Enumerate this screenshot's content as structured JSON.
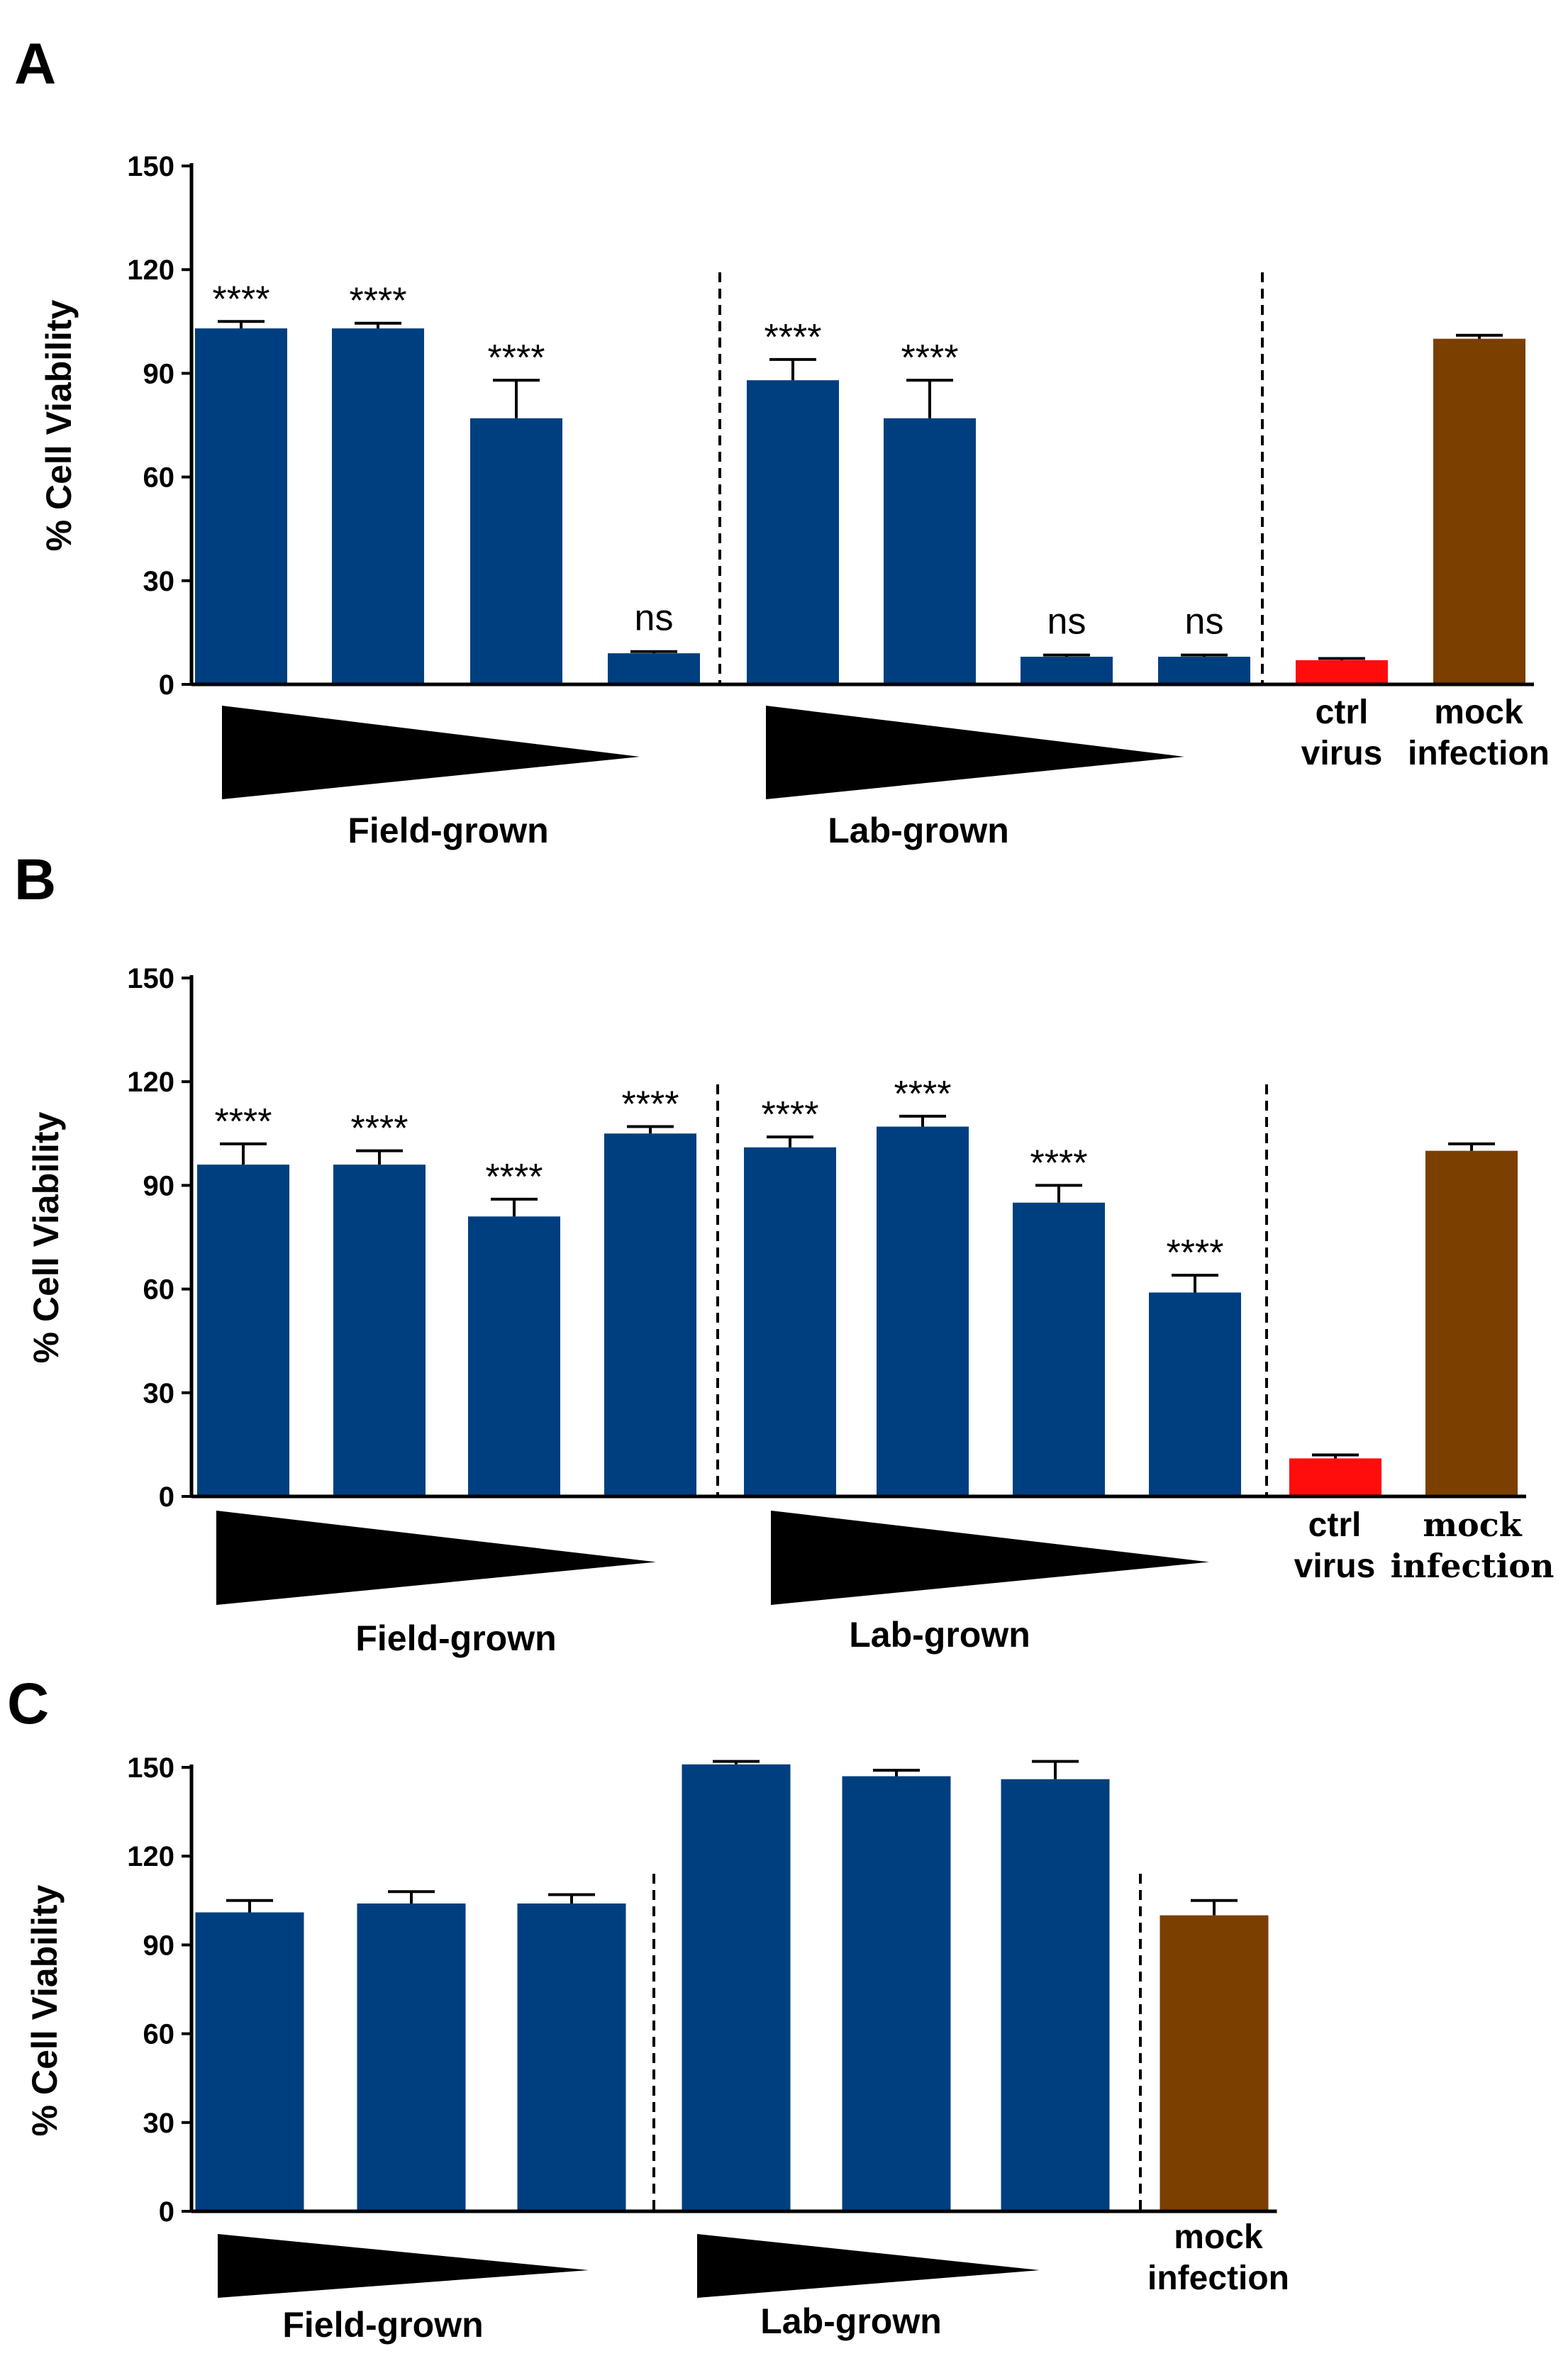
{
  "colors": {
    "treatment": "#003F7F",
    "ctrl_virus": "#FF0D0D",
    "mock_infection": "#7B3F00",
    "axis": "#000000"
  },
  "chart_data": [
    {
      "type": "bar",
      "panel": "A",
      "ylabel": "% Cell Viability",
      "ylim": [
        0,
        150
      ],
      "yticks": [
        "0",
        "30",
        "60",
        "90",
        "120",
        "150"
      ],
      "groups": [
        "Field-grown",
        "Lab-grown"
      ],
      "conditions": [
        {
          "lines": [
            "ctrl",
            "virus"
          ]
        },
        {
          "lines": [
            "mock",
            "infection"
          ]
        }
      ],
      "bars": [
        {
          "group": "Field-grown",
          "value": 103,
          "error": 2,
          "sig": "****",
          "color": "treatment"
        },
        {
          "group": "Field-grown",
          "value": 103,
          "error": 1.5,
          "sig": "****",
          "color": "treatment"
        },
        {
          "group": "Field-grown",
          "value": 77,
          "error": 11,
          "sig": "****",
          "color": "treatment"
        },
        {
          "group": "Field-grown",
          "value": 9,
          "error": 0.5,
          "sig": "ns",
          "color": "treatment"
        },
        {
          "group": "Lab-grown",
          "value": 88,
          "error": 6,
          "sig": "****",
          "color": "treatment"
        },
        {
          "group": "Lab-grown",
          "value": 77,
          "error": 11,
          "sig": "****",
          "color": "treatment"
        },
        {
          "group": "Lab-grown",
          "value": 8,
          "error": 0.5,
          "sig": "ns",
          "color": "treatment"
        },
        {
          "group": "Lab-grown",
          "value": 8,
          "error": 0.5,
          "sig": "ns",
          "color": "treatment"
        },
        {
          "group": "ctrl virus",
          "value": 7,
          "error": 0.5,
          "sig": "",
          "color": "ctrl_virus"
        },
        {
          "group": "mock infection",
          "value": 100,
          "error": 1,
          "sig": "",
          "color": "mock_infection"
        }
      ]
    },
    {
      "type": "bar",
      "panel": "B",
      "ylabel": "% Cell Viability",
      "ylim": [
        0,
        150
      ],
      "yticks": [
        "0",
        "30",
        "60",
        "90",
        "120",
        "150"
      ],
      "groups": [
        "Field-grown",
        "Lab-grown"
      ],
      "conditions": [
        {
          "lines": [
            "ctrl",
            "virus"
          ]
        },
        {
          "lines": [
            "mock",
            "infection"
          ]
        }
      ],
      "bars": [
        {
          "group": "Field-grown",
          "value": 96,
          "error": 6,
          "sig": "****",
          "color": "treatment"
        },
        {
          "group": "Field-grown",
          "value": 96,
          "error": 4,
          "sig": "****",
          "color": "treatment"
        },
        {
          "group": "Field-grown",
          "value": 81,
          "error": 5,
          "sig": "****",
          "color": "treatment"
        },
        {
          "group": "Field-grown",
          "value": 105,
          "error": 2,
          "sig": "****",
          "color": "treatment"
        },
        {
          "group": "Lab-grown",
          "value": 101,
          "error": 3,
          "sig": "****",
          "color": "treatment"
        },
        {
          "group": "Lab-grown",
          "value": 107,
          "error": 3,
          "sig": "****",
          "color": "treatment"
        },
        {
          "group": "Lab-grown",
          "value": 85,
          "error": 5,
          "sig": "****",
          "color": "treatment"
        },
        {
          "group": "Lab-grown",
          "value": 59,
          "error": 5,
          "sig": "****",
          "color": "treatment"
        },
        {
          "group": "ctrl virus",
          "value": 11,
          "error": 1,
          "sig": "",
          "color": "ctrl_virus"
        },
        {
          "group": "mock infection",
          "value": 100,
          "error": 2,
          "sig": "",
          "color": "mock_infection"
        }
      ]
    },
    {
      "type": "bar",
      "panel": "C",
      "ylabel": "% Cell Viability",
      "ylim": [
        0,
        150
      ],
      "yticks": [
        "0",
        "30",
        "60",
        "90",
        "120",
        "150"
      ],
      "groups": [
        "Field-grown",
        "Lab-grown"
      ],
      "conditions": [
        {
          "lines": [
            "mock",
            "infection"
          ]
        }
      ],
      "bars": [
        {
          "group": "Field-grown",
          "value": 101,
          "error": 4,
          "sig": "",
          "color": "treatment"
        },
        {
          "group": "Field-grown",
          "value": 104,
          "error": 4,
          "sig": "",
          "color": "treatment"
        },
        {
          "group": "Field-grown",
          "value": 104,
          "error": 3,
          "sig": "",
          "color": "treatment"
        },
        {
          "group": "Lab-grown",
          "value": 151,
          "error": 1,
          "sig": "",
          "color": "treatment"
        },
        {
          "group": "Lab-grown",
          "value": 147,
          "error": 2,
          "sig": "",
          "color": "treatment"
        },
        {
          "group": "Lab-grown",
          "value": 146,
          "error": 6,
          "sig": "",
          "color": "treatment"
        },
        {
          "group": "mock infection",
          "value": 100,
          "error": 5,
          "sig": "",
          "color": "mock_infection"
        }
      ]
    }
  ]
}
